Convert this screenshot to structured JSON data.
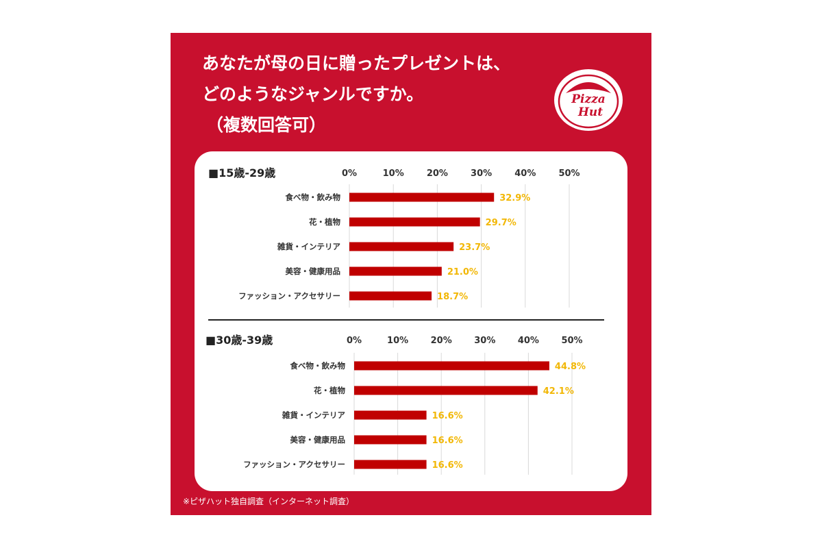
{
  "title_lines": [
    "あなたが母の日に贈ったプレゼントは、",
    "どのようなジャンルですか。",
    "（複数回答可）"
  ],
  "logo": {
    "line1": "Pizza",
    "line2": "Hut"
  },
  "note": "※ピザハット独自調査（インターネット調査）",
  "colors": {
    "background": "#c8102e",
    "bar": "#c00000",
    "value_label": "#f2b705",
    "panel": "#ffffff"
  },
  "chart_data": [
    {
      "type": "bar",
      "orientation": "horizontal",
      "title": "■15歳-29歳",
      "categories": [
        "食べ物・飲み物",
        "花・植物",
        "雑貨・インテリア",
        "美容・健康用品",
        "ファッション・アクセサリー"
      ],
      "values": [
        32.9,
        29.7,
        23.7,
        21.0,
        18.7
      ],
      "labels": [
        "32.9%",
        "29.7%",
        "23.7%",
        "21.0%",
        "18.7%"
      ],
      "ticks": [
        "0%",
        "10%",
        "20%",
        "30%",
        "40%",
        "50%"
      ],
      "xlim": [
        0,
        50
      ]
    },
    {
      "type": "bar",
      "orientation": "horizontal",
      "title": "■30歳-39歳",
      "categories": [
        "食べ物・飲み物",
        "花・植物",
        "雑貨・インテリア",
        "美容・健康用品",
        "ファッション・アクセサリー"
      ],
      "values": [
        44.8,
        42.1,
        16.6,
        16.6,
        16.6
      ],
      "labels": [
        "44.8%",
        "42.1%",
        "16.6%",
        "16.6%",
        "16.6%"
      ],
      "ticks": [
        "0%",
        "10%",
        "20%",
        "30%",
        "40%",
        "50%"
      ],
      "xlim": [
        0,
        50
      ]
    }
  ]
}
